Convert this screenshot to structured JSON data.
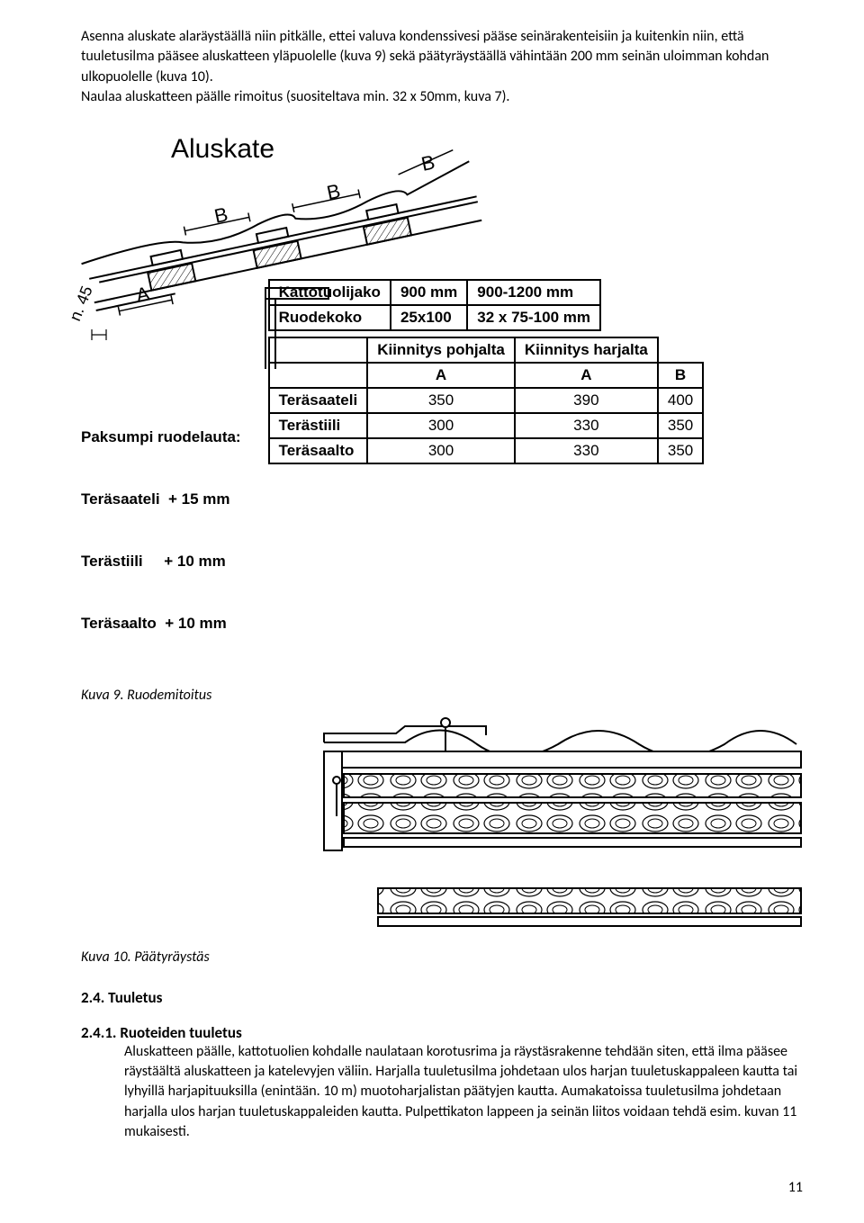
{
  "intro": "Asenna aluskate alaräystäällä niin pitkälle, ettei valuva kondenssivesi pääse seinärakenteisiin ja kuitenkin niin, että tuuletusilma pääsee aluskatteen yläpuolelle (kuva 9) sekä päätyräystäällä vähintään 200 mm seinän uloimman kohdan ulkopuolelle (kuva 10).\nNaulaa aluskatteen päälle rimoitus (suositeltava min. 32 x 50mm, kuva 7).",
  "diagram": {
    "title": "Aluskate",
    "angle_label": "n. 45",
    "letters": [
      "A",
      "B",
      "B",
      "B"
    ],
    "font_title": 30,
    "font_letter": 22,
    "line_color": "#000000",
    "line_width": 2.2,
    "bg": "#ffffff"
  },
  "table1": {
    "headers": [
      "Kattotuolijako",
      "Ruodekoko"
    ],
    "col1": [
      "900 mm",
      "25x100"
    ],
    "col2": [
      "900-1200 mm",
      "32 x 75-100 mm"
    ]
  },
  "table2": {
    "header_row1": [
      "",
      "Kiinnitys pohjalta",
      "Kiinnitys harjalta",
      ""
    ],
    "header_row2": [
      "",
      "A",
      "A",
      "B"
    ],
    "rows": [
      [
        "Teräsaateli",
        "350",
        "390",
        "400"
      ],
      [
        "Terästiili",
        "300",
        "330",
        "350"
      ],
      [
        "Teräsaalto",
        "300",
        "330",
        "350"
      ]
    ]
  },
  "paksumpi": {
    "title": "Paksumpi ruodelauta:",
    "lines": [
      "Teräsaateli  + 15 mm",
      "Terästiili     + 10 mm",
      "Teräsaalto  + 10 mm"
    ]
  },
  "caption9": "Kuva 9. Ruodemitoitus",
  "caption10": "Kuva 10. Päätyräystäs",
  "sec24": "2.4. Tuuletus",
  "sec241_title": "2.4.1. Ruoteiden tuuletus",
  "sec241_body": "Aluskatteen päälle, kattotuolien kohdalle naulataan korotusrima ja räystäsrakenne tehdään siten, että ilma pääsee räystäältä aluskatteen ja katelevyjen väliin. Harjalla tuuletusilma johdetaan ulos harjan tuuletuskappaleen kautta tai lyhyillä harjapituuksilla (enintään. 10 m) muotoharjalistan päätyjen kautta. Aumakatoissa tuuletusilma johdetaan harjalla ulos harjan tuuletuskappaleiden kautta. Pulpettikaton lappeen ja seinän liitos voidaan tehdä esim. kuvan 11 mukaisesti.",
  "page_number": "11",
  "colors": {
    "text": "#000000",
    "border": "#000000",
    "bg": "#ffffff"
  },
  "typography": {
    "body_font_size": 16,
    "table_font_size": 17,
    "caption_font_size": 16
  }
}
